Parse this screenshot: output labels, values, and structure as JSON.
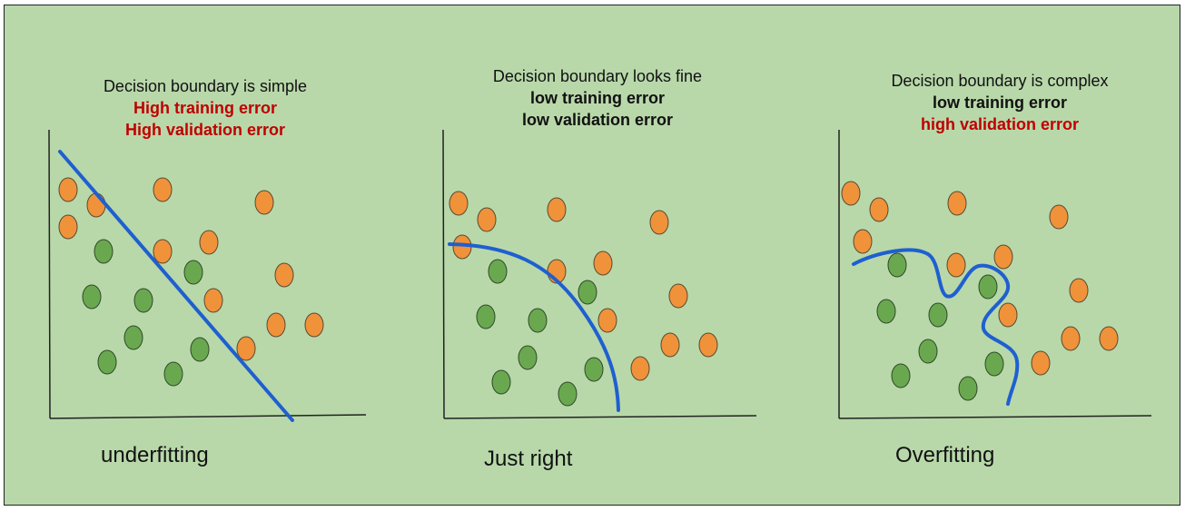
{
  "panels": [
    {
      "id": "underfit",
      "header": {
        "line1": "Decision boundary is simple",
        "line2": "High training error",
        "line3": "High validation error",
        "line2_color": "#c00000",
        "line3_color": "#c00000"
      },
      "caption": "underfitting"
    },
    {
      "id": "justright",
      "header": {
        "line1": "Decision boundary looks fine",
        "line2": "low training error",
        "line3": "low validation error",
        "line2_color": "#111111",
        "line3_color": "#111111"
      },
      "caption": "Just right"
    },
    {
      "id": "overfit",
      "header": {
        "line1": "Decision boundary is complex",
        "line2": "low training error",
        "line3": "high validation error",
        "line2_color": "#111111",
        "line3_color": "#c00000"
      },
      "caption": "Overfitting"
    }
  ],
  "colors": {
    "background": "#b8d8aa",
    "orange": "#f0923a",
    "green": "#6aa84f",
    "boundary": "#1f5fd0",
    "error_red": "#c00000"
  }
}
